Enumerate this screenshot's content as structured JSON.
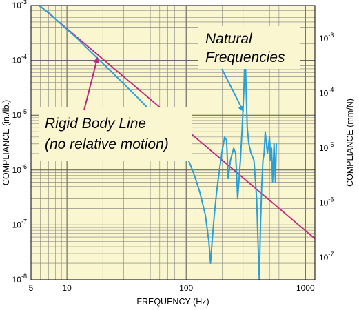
{
  "chart_data": {
    "type": "line",
    "xlabel": "FREQUENCY (Hz)",
    "ylabel_left": "COMPLIANCE (in./lb.)",
    "ylabel_right": "COMPLIANCE (mm/N)",
    "x_scale": "log",
    "y_scale": "log",
    "xlim": [
      5,
      1200
    ],
    "ylim": [
      1e-08,
      0.001
    ],
    "grid": true,
    "background_color": "#faf6cf",
    "x_ticks": [
      "5",
      "10",
      "100",
      "1000"
    ],
    "y_ticks_left": [
      {
        "base": "10",
        "exp": "-3"
      },
      {
        "base": "10",
        "exp": "-4"
      },
      {
        "base": "10",
        "exp": "-5"
      },
      {
        "base": "10",
        "exp": "-6"
      },
      {
        "base": "10",
        "exp": "-7"
      },
      {
        "base": "10",
        "exp": "-8"
      }
    ],
    "y_ticks_right": [
      {
        "base": "10",
        "exp": "-3"
      },
      {
        "base": "10",
        "exp": "-4"
      },
      {
        "base": "10",
        "exp": "-5"
      },
      {
        "base": "10",
        "exp": "-6"
      },
      {
        "base": "10",
        "exp": "-7"
      }
    ],
    "series": [
      {
        "color": "#c0267f",
        "x": [
          5.6,
          1200
        ],
        "y": [
          0.0011,
          5.6e-08
        ]
      },
      {
        "color": "#2aa0d8",
        "x": [
          5.8,
          7,
          9,
          12,
          16,
          25,
          40,
          60,
          80,
          100,
          115,
          130,
          145,
          155,
          160,
          165,
          172,
          180,
          190,
          200,
          210,
          218,
          225,
          235,
          250,
          260,
          270,
          285,
          295,
          305,
          312,
          318,
          325,
          335,
          350,
          370,
          390,
          400,
          410,
          420,
          430,
          440,
          450,
          460,
          480,
          500,
          510,
          520,
          530,
          545,
          560,
          570
        ],
        "y": [
          0.001,
          0.00075,
          0.00045,
          0.00026,
          0.00014,
          5.5e-05,
          2e-05,
          8e-06,
          3.8e-06,
          1.9e-06,
          9e-07,
          4e-07,
          1.5e-07,
          5e-08,
          2e-08,
          5e-08,
          1.5e-07,
          4e-07,
          1e-06,
          2.2e-06,
          4e-06,
          3.5e-06,
          7e-07,
          1.5e-06,
          2.5e-06,
          2e-06,
          3e-07,
          1.5e-06,
          6e-06,
          3e-05,
          0.00015,
          3e-05,
          6e-06,
          3e-06,
          2e-06,
          1.5e-06,
          3e-07,
          5e-08,
          1e-08,
          1e-07,
          5e-07,
          1.5e-06,
          2e-06,
          5e-06,
          2e-06,
          4e-06,
          1.5e-06,
          2.5e-06,
          6e-07,
          3e-06,
          6e-07,
          3e-06
        ]
      }
    ],
    "annotations": [
      {
        "lines": [
          "Rigid Body Line",
          "(no relative motion)"
        ],
        "target_series": 0,
        "target": [
          18,
          0.00011
        ]
      },
      {
        "lines": [
          "Natural",
          "Frequencies"
        ],
        "target_series": 1,
        "target": [
          300,
          1.2e-05
        ]
      }
    ]
  }
}
